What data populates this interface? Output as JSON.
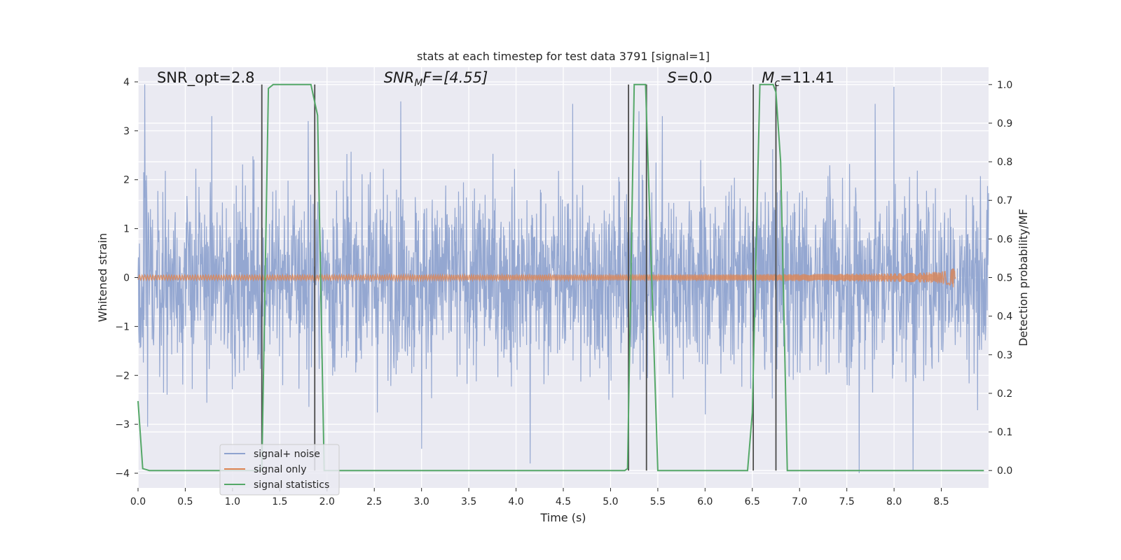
{
  "chart_data": {
    "type": "line",
    "title": "stats at each timestep for test data 3791 [signal=1]",
    "xlabel": "Time (s)",
    "ylabel": "Whitened strain",
    "y2label": "Detection probability/MF",
    "xlim": [
      0,
      9
    ],
    "ylim": [
      -4.3,
      4.3
    ],
    "y2lim": [
      -0.045,
      1.045
    ],
    "x_ticks": [
      0.0,
      0.5,
      1.0,
      1.5,
      2.0,
      2.5,
      3.0,
      3.5,
      4.0,
      4.5,
      5.0,
      5.5,
      6.0,
      6.5,
      7.0,
      7.5,
      8.0,
      8.5
    ],
    "x_tick_labels": [
      "0.0",
      "0.5",
      "1.0",
      "1.5",
      "2.0",
      "2.5",
      "3.0",
      "3.5",
      "4.0",
      "4.5",
      "5.0",
      "5.5",
      "6.0",
      "6.5",
      "7.0",
      "7.5",
      "8.0",
      "8.5"
    ],
    "y_ticks": [
      4,
      3,
      2,
      1,
      0,
      -1,
      -2,
      -3,
      -4
    ],
    "y_tick_labels": [
      "4",
      "3",
      "2",
      "1",
      "0",
      "−1",
      "−2",
      "−3",
      "−4"
    ],
    "y2_ticks": [
      1.0,
      0.9,
      0.8,
      0.7,
      0.6,
      0.5,
      0.4,
      0.3,
      0.2,
      0.1,
      0.0
    ],
    "y2_tick_labels": [
      "1.0",
      "0.9",
      "0.8",
      "0.7",
      "0.6",
      "0.5",
      "0.4",
      "0.3",
      "0.2",
      "0.1",
      "0.0"
    ],
    "grid": true,
    "legend": {
      "placement": "lower-left",
      "entries": [
        "signal+ noise",
        "signal only",
        "signal statistics"
      ]
    },
    "annotations": {
      "snr_opt": "SNR_opt=2.8",
      "snr_mf_sym": "SNR",
      "snr_mf_sub": "M",
      "snr_mf_rest": "F=[4.55]",
      "s_sym": "S",
      "s_rest": "=0.0",
      "mc_sym": "M",
      "mc_sub": "c",
      "mc_rest": "=11.41"
    },
    "series": [
      {
        "name": "signal+ noise",
        "color": "#8fa3cf",
        "description": "whitened noise plus signal, noise-dominated",
        "x_range": [
          0,
          9
        ],
        "typical_envelope": [
          -2.4,
          2.4
        ],
        "peaks": [
          {
            "x": 0.07,
            "y": 3.95
          },
          {
            "x": 0.78,
            "y": 3.3
          },
          {
            "x": 1.8,
            "y": 3.2
          },
          {
            "x": 2.78,
            "y": 3.6
          },
          {
            "x": 4.6,
            "y": 3.55
          },
          {
            "x": 5.3,
            "y": 3.4
          },
          {
            "x": 5.55,
            "y": 3.3
          },
          {
            "x": 7.8,
            "y": 3.55
          },
          {
            "x": 8.0,
            "y": 3.9
          },
          {
            "x": 0.1,
            "y": -3.05
          },
          {
            "x": 3.0,
            "y": -3.5
          },
          {
            "x": 4.15,
            "y": -3.8
          },
          {
            "x": 7.63,
            "y": -4.0
          },
          {
            "x": 8.2,
            "y": -3.95
          }
        ]
      },
      {
        "name": "signal only",
        "color": "#dd8452",
        "description": "chirp that grows to merger",
        "x_range": [
          0,
          8.65
        ],
        "peak_time": 8.65,
        "peak_amplitude": 0.55
      },
      {
        "name": "signal statistics",
        "color": "#55a868",
        "axis": "right",
        "x": [
          0.0,
          0.05,
          0.12,
          1.31,
          1.38,
          1.43,
          1.5,
          1.83,
          1.9,
          1.97,
          5.15,
          5.18,
          5.25,
          5.37,
          5.5,
          6.45,
          6.5,
          6.58,
          6.72,
          6.75,
          6.8,
          6.87,
          8.95
        ],
        "y": [
          0.18,
          0.005,
          0.0,
          0.0,
          0.99,
          1.0,
          1.0,
          1.0,
          0.92,
          0.0,
          0.0,
          0.005,
          1.0,
          1.0,
          0.0,
          0.0,
          0.15,
          1.0,
          1.0,
          0.98,
          0.8,
          0.0,
          0.0
        ]
      }
    ],
    "vertical_markers": {
      "color": "#4a4a4a",
      "x": [
        1.31,
        1.87,
        5.19,
        5.38,
        6.51,
        6.75
      ],
      "y_from": 0.0,
      "y_to": 1.0
    }
  }
}
